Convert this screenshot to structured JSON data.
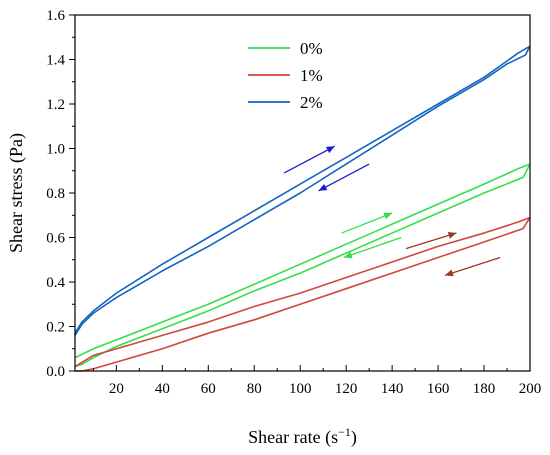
{
  "chart_data": {
    "type": "line",
    "xlabel": "Shear rate",
    "xlabel_unit": "s",
    "xlabel_unit_exp": "−1",
    "ylabel": "Shear stress (Pa)",
    "xlim": [
      2,
      200
    ],
    "ylim": [
      0,
      1.6
    ],
    "x_ticks": [
      20,
      40,
      60,
      80,
      100,
      120,
      140,
      160,
      180,
      200
    ],
    "y_ticks": [
      0.0,
      0.2,
      0.4,
      0.6,
      0.8,
      1.0,
      1.2,
      1.4,
      1.6
    ],
    "x_tick_labels": [
      "20",
      "40",
      "60",
      "80",
      "100",
      "120",
      "140",
      "160",
      "180",
      "200"
    ],
    "y_tick_labels": [
      "0.0",
      "0.2",
      "0.4",
      "0.6",
      "0.8",
      "1.0",
      "1.2",
      "1.4",
      "1.6"
    ],
    "legend_position": "top-center",
    "series": [
      {
        "name": "2%",
        "color": "#1565c0",
        "up": {
          "x": [
            2,
            5,
            10,
            20,
            40,
            60,
            80,
            100,
            120,
            140,
            160,
            180,
            195,
            200
          ],
          "y": [
            0.17,
            0.22,
            0.27,
            0.35,
            0.48,
            0.6,
            0.72,
            0.84,
            0.96,
            1.08,
            1.2,
            1.32,
            1.43,
            1.46
          ]
        },
        "down": {
          "x": [
            200,
            198,
            190,
            180,
            160,
            140,
            120,
            100,
            80,
            60,
            40,
            20,
            10,
            5,
            2
          ],
          "y": [
            1.46,
            1.42,
            1.38,
            1.31,
            1.19,
            1.06,
            0.93,
            0.8,
            0.68,
            0.56,
            0.45,
            0.33,
            0.26,
            0.21,
            0.16
          ]
        },
        "arrow_up": [
          [
            93,
            0.89
          ],
          [
            115,
            1.01
          ]
        ],
        "arrow_down": [
          [
            130,
            0.93
          ],
          [
            108,
            0.81
          ]
        ]
      },
      {
        "name": "0%",
        "color": "#33e04b",
        "up": {
          "x": [
            2,
            10,
            20,
            40,
            60,
            80,
            100,
            120,
            140,
            160,
            180,
            195,
            200
          ],
          "y": [
            0.06,
            0.1,
            0.14,
            0.22,
            0.3,
            0.39,
            0.48,
            0.57,
            0.66,
            0.75,
            0.84,
            0.91,
            0.93
          ]
        },
        "down": {
          "x": [
            200,
            197,
            180,
            160,
            140,
            120,
            100,
            80,
            60,
            40,
            20,
            10,
            5,
            2
          ],
          "y": [
            0.93,
            0.87,
            0.8,
            0.71,
            0.62,
            0.53,
            0.44,
            0.36,
            0.27,
            0.19,
            0.11,
            0.06,
            0.03,
            0.02
          ]
        },
        "arrow_up": [
          [
            118,
            0.62
          ],
          [
            140,
            0.71
          ]
        ],
        "arrow_down": [
          [
            144,
            0.6
          ],
          [
            119,
            0.51
          ]
        ]
      },
      {
        "name": "1%",
        "color": "#d2473c",
        "up": {
          "x": [
            2,
            10,
            20,
            40,
            60,
            80,
            100,
            120,
            140,
            160,
            180,
            195,
            200
          ],
          "y": [
            0.02,
            0.07,
            0.1,
            0.16,
            0.22,
            0.29,
            0.35,
            0.42,
            0.49,
            0.56,
            0.62,
            0.67,
            0.69
          ]
        },
        "down": {
          "x": [
            200,
            197,
            180,
            160,
            140,
            120,
            100,
            80,
            60,
            40,
            20,
            10,
            5,
            2
          ],
          "y": [
            0.69,
            0.64,
            0.58,
            0.51,
            0.44,
            0.37,
            0.3,
            0.23,
            0.17,
            0.1,
            0.04,
            0.01,
            0.0,
            0.0
          ]
        },
        "arrow_up": [
          [
            146,
            0.55
          ],
          [
            168,
            0.62
          ]
        ],
        "arrow_down": [
          [
            187,
            0.51
          ],
          [
            163,
            0.43
          ]
        ],
        "arrow_color": "#9b3a1e"
      }
    ],
    "legend_order": [
      "0%",
      "1%",
      "2%"
    ]
  }
}
